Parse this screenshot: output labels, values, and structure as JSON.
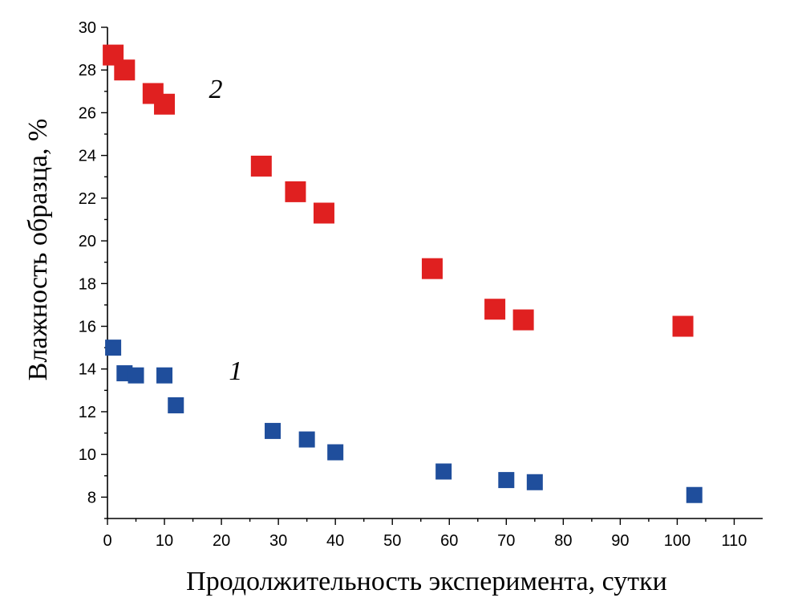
{
  "chart_data": {
    "type": "scatter",
    "xlabel": "Продолжительность эксперимента, сутки",
    "ylabel": "Влажность образца, %",
    "xlim": [
      0,
      115
    ],
    "ylim": [
      7,
      30
    ],
    "xticks": [
      0,
      10,
      20,
      30,
      40,
      50,
      60,
      70,
      80,
      90,
      100,
      110
    ],
    "yticks": [
      8,
      10,
      12,
      14,
      16,
      18,
      20,
      22,
      24,
      26,
      28,
      30
    ],
    "grid": false,
    "series": [
      {
        "name": "1",
        "color": "#1f4e9c",
        "x": [
          1,
          3,
          5,
          10,
          12,
          29,
          35,
          40,
          59,
          70,
          75,
          103
        ],
        "y": [
          15.0,
          13.8,
          13.7,
          13.7,
          12.3,
          11.1,
          10.7,
          10.1,
          9.2,
          8.8,
          8.7,
          8.1
        ]
      },
      {
        "name": "2",
        "color": "#e02020",
        "x": [
          1,
          3,
          8,
          10,
          27,
          33,
          38,
          57,
          68,
          73,
          101
        ],
        "y": [
          28.7,
          28.0,
          26.9,
          26.4,
          23.5,
          22.3,
          21.3,
          18.7,
          16.8,
          16.3,
          16.0
        ]
      }
    ],
    "annotations": [
      {
        "text": "2",
        "series": "2",
        "x": 19,
        "y": 26.7
      },
      {
        "text": "1",
        "series": "1",
        "x": 22.5,
        "y": 13.5
      }
    ]
  }
}
